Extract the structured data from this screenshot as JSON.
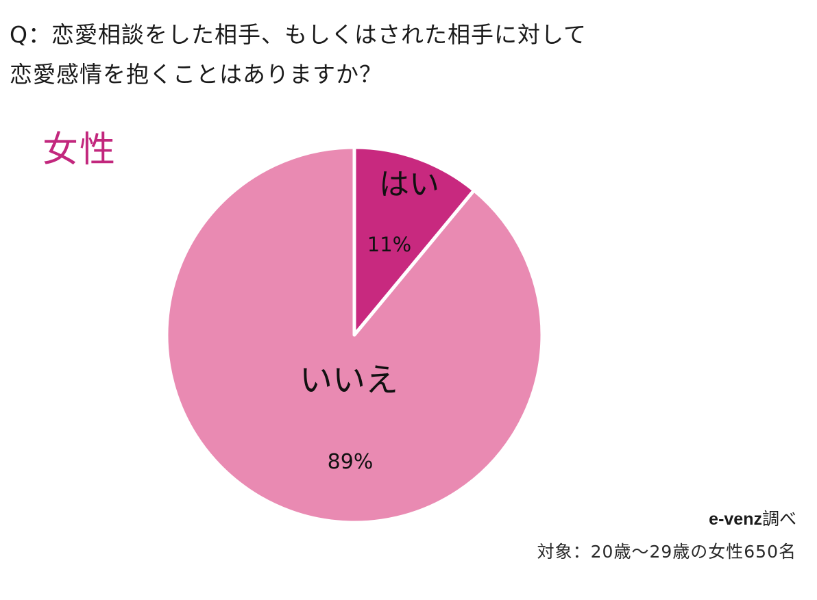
{
  "question": {
    "line1": "Q：恋愛相談をした相手、もしくはされた相手に対して",
    "line2": "恋愛感情を抱くことはありますか？"
  },
  "segment_label": "女性",
  "credit": {
    "brand": "e-venz",
    "suffix": "調べ"
  },
  "respondents": "対象：20歳〜29歳の女性650名",
  "colors": {
    "yes": "#c8297f",
    "no": "#e98ab2",
    "segment_label": "#c2277d",
    "separator": "#ffffff"
  },
  "chart_data": {
    "type": "pie",
    "labels": [
      "はい",
      "いいえ"
    ],
    "values": [
      11,
      89
    ],
    "value_labels": [
      "11%",
      "89%"
    ],
    "colors": [
      "#c8297f",
      "#e98ab2"
    ],
    "start": "12 o'clock",
    "direction": "clockwise"
  }
}
